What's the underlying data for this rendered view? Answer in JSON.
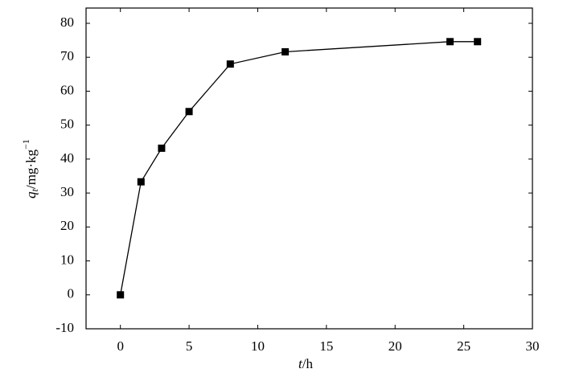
{
  "chart_data": {
    "type": "line",
    "xlabel_parts": [
      "t",
      "/h"
    ],
    "ylabel_parts": [
      "q",
      "t",
      "/mg·kg",
      "−1"
    ],
    "x": [
      0,
      1.5,
      3,
      5,
      8,
      12,
      24,
      26
    ],
    "series": [
      {
        "color": "#000000",
        "values": [
          0,
          33.3,
          43.2,
          54,
          68,
          71.6,
          74.6,
          74.6
        ]
      }
    ],
    "xlim": [
      -2.5,
      30
    ],
    "ylim": [
      -10,
      84.5
    ],
    "xticks": [
      0,
      5,
      10,
      15,
      20,
      25,
      30
    ],
    "yticks": [
      -10,
      0,
      10,
      20,
      30,
      40,
      50,
      60,
      70,
      80
    ],
    "grid": false
  }
}
